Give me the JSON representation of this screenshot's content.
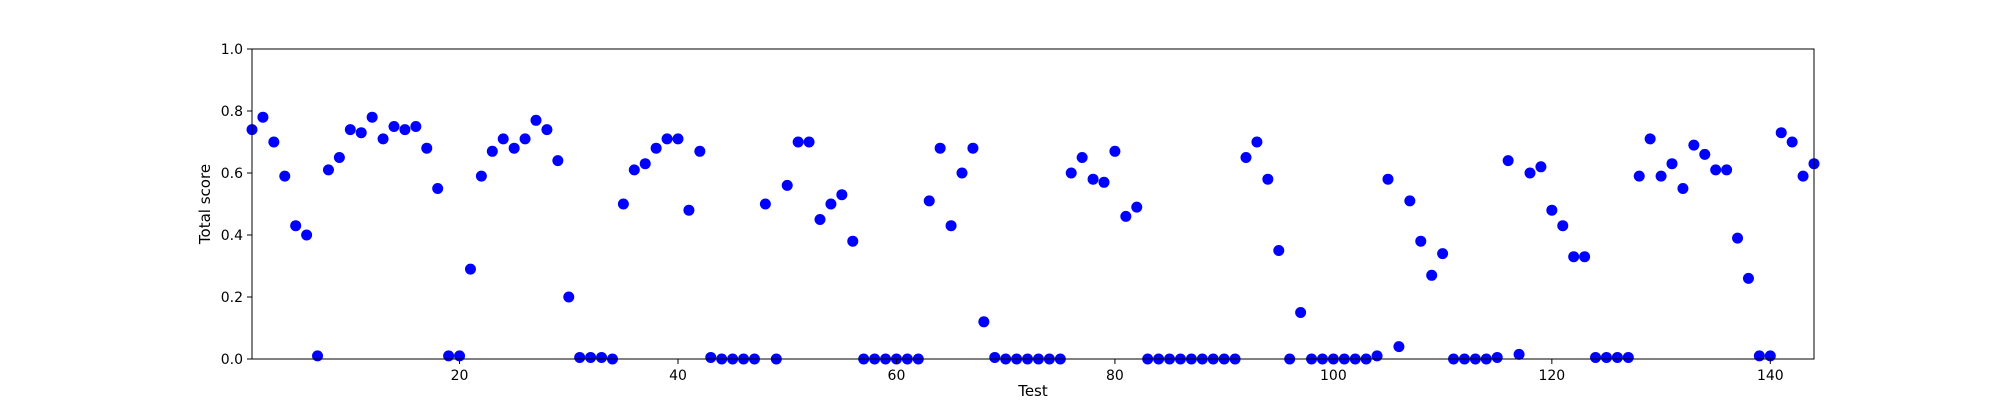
{
  "chart_data": {
    "type": "scatter",
    "title": "",
    "xlabel": "Test",
    "ylabel": "Total score",
    "xlim": [
      1,
      144
    ],
    "ylim": [
      0.0,
      1.0
    ],
    "x_ticks": [
      20,
      40,
      60,
      80,
      100,
      120,
      140
    ],
    "x_tick_labels": [
      "20",
      "40",
      "60",
      "80",
      "100",
      "120",
      "140"
    ],
    "y_ticks": [
      0.0,
      0.2,
      0.4,
      0.6,
      0.8,
      1.0
    ],
    "y_tick_labels": [
      "0.0",
      "0.2",
      "0.4",
      "0.6",
      "0.8",
      "1.0"
    ],
    "grid": false,
    "marker_color": "#0000ff",
    "series": [
      {
        "x": [
          1,
          2,
          3,
          4,
          5,
          6,
          7,
          8,
          9,
          10,
          11,
          12,
          13,
          14,
          15,
          16,
          17,
          18,
          19,
          20,
          21,
          22,
          23,
          24,
          25,
          26,
          27,
          28,
          29,
          30,
          31,
          32,
          33,
          34,
          35,
          36,
          37,
          38,
          39,
          40,
          41,
          42,
          43,
          44,
          45,
          46,
          47,
          48,
          49,
          50,
          51,
          52,
          53,
          54,
          55,
          56,
          57,
          58,
          59,
          60,
          61,
          62,
          63,
          64,
          65,
          66,
          67,
          68,
          69,
          70,
          71,
          72,
          73,
          74,
          75,
          76,
          77,
          78,
          79,
          80,
          81,
          82,
          83,
          84,
          85,
          86,
          87,
          88,
          89,
          90,
          91,
          92,
          93,
          94,
          95,
          96,
          97,
          98,
          99,
          100,
          101,
          102,
          103,
          104,
          105,
          106,
          107,
          108,
          109,
          110,
          111,
          112,
          113,
          114,
          115,
          116,
          117,
          118,
          119,
          120,
          121,
          122,
          123,
          124,
          125,
          126,
          127,
          128,
          129,
          130,
          131,
          132,
          133,
          134,
          135,
          136,
          137,
          138,
          139,
          140,
          141,
          142,
          143,
          144
        ],
        "y": [
          0.74,
          0.78,
          0.7,
          0.59,
          0.43,
          0.4,
          0.01,
          0.61,
          0.65,
          0.74,
          0.73,
          0.78,
          0.71,
          0.75,
          0.74,
          0.75,
          0.68,
          0.55,
          0.01,
          0.01,
          0.29,
          0.59,
          0.67,
          0.71,
          0.68,
          0.71,
          0.77,
          0.74,
          0.64,
          0.2,
          0.005,
          0.005,
          0.005,
          0.0,
          0.5,
          0.61,
          0.63,
          0.68,
          0.71,
          0.71,
          0.48,
          0.67,
          0.005,
          0.0,
          0.0,
          0.0,
          0.0,
          0.5,
          0.0,
          0.56,
          0.7,
          0.7,
          0.45,
          0.5,
          0.53,
          0.38,
          0.0,
          0.0,
          0.0,
          0.0,
          0.0,
          0.0,
          0.51,
          0.68,
          0.43,
          0.6,
          0.68,
          0.12,
          0.005,
          0.0,
          0.0,
          0.0,
          0.0,
          0.0,
          0.0,
          0.6,
          0.65,
          0.58,
          0.57,
          0.67,
          0.46,
          0.49,
          0.0,
          0.0,
          0.0,
          0.0,
          0.0,
          0.0,
          0.0,
          0.0,
          0.0,
          0.65,
          0.7,
          0.58,
          0.35,
          0.0,
          0.15,
          0.0,
          0.0,
          0.0,
          0.0,
          0.0,
          0.0,
          0.01,
          0.58,
          0.04,
          0.51,
          0.38,
          0.27,
          0.34,
          0.0,
          0.0,
          0.0,
          0.0,
          0.005,
          0.64,
          0.015,
          0.6,
          0.62,
          0.48,
          0.43,
          0.33,
          0.33,
          0.005,
          0.005,
          0.005,
          0.005,
          0.59,
          0.71,
          0.59,
          0.63,
          0.55,
          0.69,
          0.66,
          0.61,
          0.61,
          0.39,
          0.26,
          0.01,
          0.01,
          0.73,
          0.7,
          0.59,
          0.63
        ]
      }
    ]
  }
}
